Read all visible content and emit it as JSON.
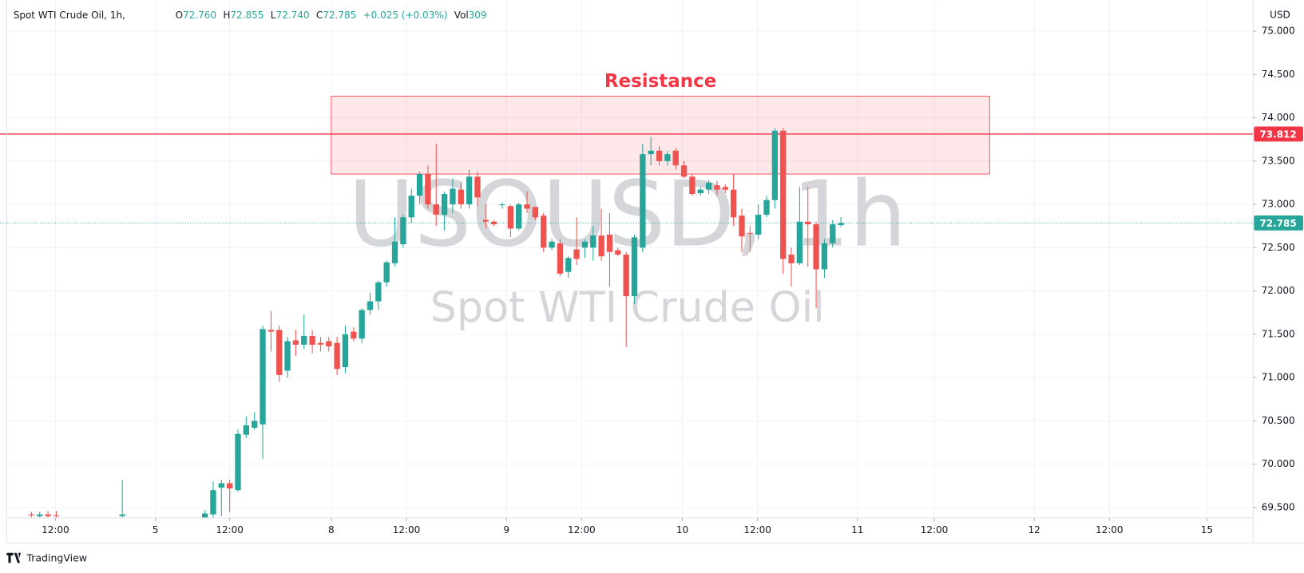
{
  "chart_data": {
    "type": "candlestick",
    "header": {
      "symbol": "Spot WTI Crude Oil, 1h,",
      "open_label": "O",
      "open": "72.760",
      "high_label": "H",
      "high": "72.855",
      "low_label": "L",
      "low": "72.740",
      "close_label": "C",
      "close": "72.785",
      "change": "+0.025 (+0.03%)",
      "volume_label": "Vol",
      "volume": "309"
    },
    "watermark": {
      "symbol": "USOUSD, 1h",
      "description": "Spot WTI Crude Oil"
    },
    "y_axis_unit": "USD",
    "brand": "TradingView",
    "up_color": "#26a69a",
    "down_color": "#ef5350",
    "x": [
      0,
      1,
      2,
      3,
      11,
      21,
      22,
      23,
      24,
      25,
      26,
      27,
      28,
      29,
      30,
      31,
      32,
      33,
      34,
      35,
      36,
      37,
      38,
      39,
      40,
      41,
      42,
      43,
      44,
      45,
      46,
      47,
      48,
      49,
      50,
      51,
      52,
      53,
      54,
      55,
      56,
      57,
      58,
      59,
      60,
      61,
      62,
      63,
      64,
      65,
      66,
      67,
      68,
      69,
      70,
      71,
      72,
      73,
      74,
      75,
      76,
      77,
      78,
      79,
      80,
      81,
      82,
      83,
      84,
      85,
      86,
      87,
      88,
      89,
      90,
      91,
      92,
      93,
      94,
      95,
      96,
      97,
      98
    ],
    "open": [
      69.42,
      69.4,
      69.42,
      69.41,
      69.4,
      69.38,
      69.42,
      69.73,
      69.78,
      69.7,
      70.34,
      70.42,
      70.46,
      71.55,
      71.55,
      71.08,
      71.43,
      71.38,
      71.48,
      71.4,
      71.42,
      71.4,
      71.12,
      71.53,
      71.45,
      71.78,
      71.88,
      72.1,
      72.32,
      72.54,
      72.85,
      73.1,
      73.35,
      73.0,
      72.88,
      73.0,
      73.17,
      73.0,
      73.32,
      72.82,
      72.8,
      72.99,
      72.98,
      72.72,
      73.0,
      72.97,
      72.87,
      72.5,
      72.55,
      72.22,
      72.48,
      72.5,
      72.5,
      72.64,
      72.65,
      72.47,
      72.42,
      71.94,
      72.5,
      73.58,
      73.62,
      73.5,
      73.62,
      73.45,
      73.32,
      73.13,
      73.17,
      73.22,
      73.2,
      73.17,
      72.87,
      72.67,
      72.65,
      72.88,
      73.05,
      73.85,
      72.42,
      72.32,
      72.8,
      72.77,
      72.25,
      72.55,
      72.76
    ],
    "high": [
      69.45,
      69.45,
      69.46,
      69.46,
      69.82,
      69.47,
      69.8,
      69.82,
      69.82,
      70.4,
      70.55,
      70.6,
      71.6,
      71.77,
      71.6,
      71.47,
      71.55,
      71.73,
      71.55,
      71.47,
      71.47,
      71.47,
      71.6,
      71.58,
      71.8,
      71.98,
      72.12,
      72.35,
      72.85,
      72.88,
      73.18,
      73.38,
      73.45,
      73.7,
      73.15,
      73.3,
      73.25,
      73.4,
      73.38,
      73.0,
      72.82,
      73.02,
      73.0,
      73.02,
      73.15,
      72.97,
      72.9,
      72.6,
      72.6,
      72.4,
      72.85,
      72.6,
      72.75,
      72.95,
      72.9,
      72.5,
      72.45,
      72.65,
      73.7,
      73.78,
      73.67,
      73.62,
      73.65,
      73.5,
      73.35,
      73.2,
      73.28,
      73.27,
      73.23,
      73.35,
      72.95,
      72.75,
      73.0,
      73.1,
      73.88,
      73.88,
      72.5,
      73.2,
      73.2,
      72.8,
      72.6,
      72.82,
      72.855
    ],
    "low": [
      69.38,
      69.38,
      69.38,
      69.38,
      69.38,
      69.35,
      69.38,
      69.4,
      69.45,
      69.68,
      70.3,
      70.4,
      70.06,
      71.3,
      70.95,
      71.0,
      71.25,
      71.33,
      71.28,
      71.3,
      71.3,
      71.03,
      71.05,
      71.42,
      71.4,
      71.72,
      71.78,
      72.05,
      72.28,
      72.5,
      72.78,
      73.0,
      72.95,
      72.75,
      72.7,
      72.9,
      72.95,
      72.95,
      72.98,
      72.72,
      72.75,
      72.95,
      72.62,
      72.7,
      72.9,
      72.82,
      72.45,
      72.47,
      72.17,
      72.15,
      72.3,
      72.38,
      72.35,
      72.35,
      72.05,
      72.4,
      71.35,
      71.85,
      72.45,
      73.45,
      73.45,
      73.45,
      73.4,
      73.3,
      73.1,
      73.1,
      73.12,
      73.1,
      73.13,
      72.75,
      72.45,
      72.45,
      72.6,
      72.85,
      72.95,
      72.2,
      72.05,
      72.3,
      72.28,
      71.8,
      72.15,
      72.5,
      72.74
    ],
    "close": [
      69.41,
      69.42,
      69.4,
      69.4,
      69.42,
      69.43,
      69.7,
      69.78,
      69.72,
      70.35,
      70.45,
      70.5,
      71.56,
      71.53,
      71.03,
      71.42,
      71.38,
      71.48,
      71.38,
      71.38,
      71.36,
      71.1,
      71.5,
      71.45,
      71.78,
      71.88,
      72.1,
      72.33,
      72.57,
      72.85,
      73.1,
      73.35,
      73.0,
      72.88,
      73.12,
      73.18,
      73.0,
      73.32,
      73.08,
      72.8,
      72.77,
      73.0,
      72.72,
      73.0,
      72.95,
      72.85,
      72.5,
      72.57,
      72.2,
      72.38,
      72.37,
      72.57,
      72.64,
      72.4,
      72.45,
      72.42,
      71.94,
      72.62,
      73.58,
      73.62,
      73.5,
      73.58,
      73.45,
      73.32,
      73.12,
      73.17,
      73.25,
      73.17,
      73.17,
      72.85,
      72.63,
      72.66,
      72.88,
      73.05,
      73.85,
      72.37,
      72.32,
      72.8,
      72.77,
      72.25,
      72.55,
      72.77,
      72.785
    ],
    "xlim": [
      -3,
      147.9
    ],
    "xticks": [
      {
        "value": 2.9,
        "label": "12:00"
      },
      {
        "value": 15.0,
        "label": "5"
      },
      {
        "value": 24.0,
        "label": "12:00"
      },
      {
        "value": 36.3,
        "label": "8"
      },
      {
        "value": 45.4,
        "label": "12:00"
      },
      {
        "value": 57.5,
        "label": "9"
      },
      {
        "value": 66.6,
        "label": "12:00"
      },
      {
        "value": 78.8,
        "label": "10"
      },
      {
        "value": 87.9,
        "label": "12:00"
      },
      {
        "value": 100,
        "label": "11"
      },
      {
        "value": 109.3,
        "label": "12:00"
      },
      {
        "value": 121.4,
        "label": "12"
      },
      {
        "value": 130.5,
        "label": "12:00"
      },
      {
        "value": 142.3,
        "label": "15"
      }
    ],
    "ylim": [
      69.38,
      75.32
    ],
    "yticks": [
      {
        "value": 69.5,
        "label": "69.500"
      },
      {
        "value": 70,
        "label": "70.000"
      },
      {
        "value": 70.5,
        "label": "70.500"
      },
      {
        "value": 71,
        "label": "71.000"
      },
      {
        "value": 71.5,
        "label": "71.500"
      },
      {
        "value": 72,
        "label": "72.000"
      },
      {
        "value": 72.5,
        "label": "72.500"
      },
      {
        "value": 73,
        "label": "73.000"
      },
      {
        "value": 73.5,
        "label": "73.500"
      },
      {
        "value": 74,
        "label": "74.000"
      },
      {
        "value": 74.5,
        "label": "74.500"
      },
      {
        "value": 75,
        "label": "75.000"
      }
    ],
    "grid": true,
    "resistance_zone": {
      "label": "Resistance",
      "top": 74.25,
      "bottom": 73.35,
      "x_start": 36.3,
      "x_end": 116,
      "color": "#f23645"
    },
    "resistance_line": {
      "value": 73.812,
      "color": "#f23645"
    },
    "last_price_line": {
      "value": 72.785,
      "color": "#26a69a"
    }
  }
}
